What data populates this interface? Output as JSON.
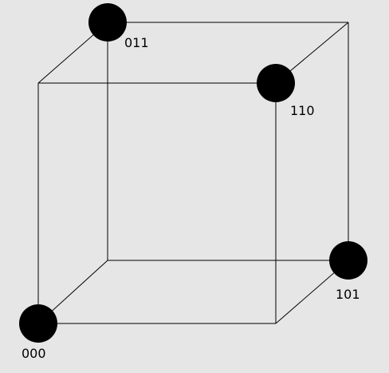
{
  "diagram": {
    "title": "",
    "background_color": "#e6e6e6",
    "line_color": "#000000",
    "vertex_color": "#000000",
    "highlighted_vertices": [
      {
        "id": "v000",
        "label": "000"
      },
      {
        "id": "v011",
        "label": "011"
      },
      {
        "id": "v110",
        "label": "110"
      },
      {
        "id": "v101",
        "label": "101"
      }
    ],
    "edges": [
      [
        "000",
        "100"
      ],
      [
        "100",
        "110"
      ],
      [
        "110",
        "010"
      ],
      [
        "010",
        "000"
      ],
      [
        "001",
        "101"
      ],
      [
        "101",
        "111"
      ],
      [
        "111",
        "011"
      ],
      [
        "011",
        "001"
      ],
      [
        "000",
        "001"
      ],
      [
        "100",
        "101"
      ],
      [
        "110",
        "111"
      ],
      [
        "010",
        "011"
      ]
    ]
  }
}
